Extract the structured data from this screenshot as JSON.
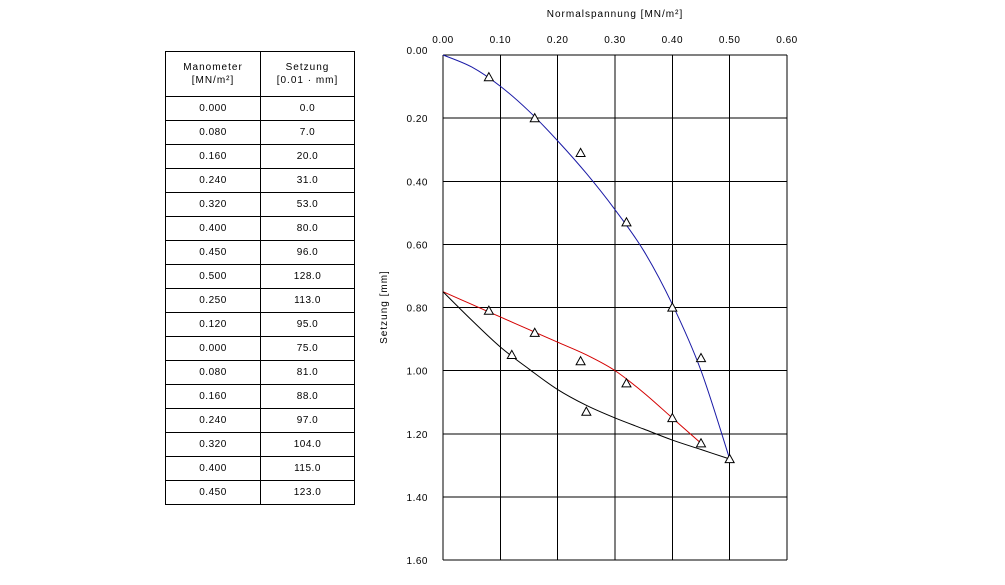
{
  "table": {
    "headers": [
      {
        "line1": "Manometer",
        "line2": "[MN/m²]"
      },
      {
        "line1": "Setzung",
        "line2": "[0.01 · mm]"
      }
    ],
    "rows": [
      [
        "0.000",
        "0.0"
      ],
      [
        "0.080",
        "7.0"
      ],
      [
        "0.160",
        "20.0"
      ],
      [
        "0.240",
        "31.0"
      ],
      [
        "0.320",
        "53.0"
      ],
      [
        "0.400",
        "80.0"
      ],
      [
        "0.450",
        "96.0"
      ],
      [
        "0.500",
        "128.0"
      ],
      [
        "0.250",
        "113.0"
      ],
      [
        "0.120",
        "95.0"
      ],
      [
        "0.000",
        "75.0"
      ],
      [
        "0.080",
        "81.0"
      ],
      [
        "0.160",
        "88.0"
      ],
      [
        "0.240",
        "97.0"
      ],
      [
        "0.320",
        "104.0"
      ],
      [
        "0.400",
        "115.0"
      ],
      [
        "0.450",
        "123.0"
      ]
    ]
  },
  "chart_data": {
    "type": "scatter",
    "title": "",
    "xlabel": "Normalspannung [MN/m²]",
    "ylabel": "Setzung [mm]",
    "xlim": [
      0,
      0.6
    ],
    "ylim": [
      0,
      1.6
    ],
    "y_inverted": true,
    "x_axis_position": "top",
    "grid": true,
    "x_ticks": [
      "0.00",
      "0.10",
      "0.20",
      "0.30",
      "0.40",
      "0.50",
      "0.60"
    ],
    "y_ticks": [
      "0.00",
      "0.20",
      "0.40",
      "0.60",
      "0.80",
      "1.00",
      "1.20",
      "1.40",
      "1.60"
    ],
    "marker": "triangle-open",
    "points": {
      "x": [
        0.08,
        0.16,
        0.24,
        0.32,
        0.4,
        0.45,
        0.5,
        0.25,
        0.12,
        0.08,
        0.16,
        0.24,
        0.32,
        0.4,
        0.45
      ],
      "y": [
        0.07,
        0.2,
        0.31,
        0.53,
        0.8,
        0.96,
        1.28,
        1.13,
        0.95,
        0.81,
        0.88,
        0.97,
        1.04,
        1.15,
        1.23
      ]
    },
    "series": [
      {
        "color": "#1a1aa6",
        "x": [
          0,
          0.05,
          0.1,
          0.15,
          0.2,
          0.25,
          0.3,
          0.35,
          0.4,
          0.45,
          0.5
        ],
        "y": [
          0,
          0.038,
          0.099,
          0.178,
          0.272,
          0.375,
          0.49,
          0.62,
          0.79,
          1.0,
          1.28
        ]
      },
      {
        "color": "#d40000",
        "x": [
          0,
          0.05,
          0.1,
          0.15,
          0.2,
          0.25,
          0.3,
          0.35,
          0.4,
          0.45
        ],
        "y": [
          0.75,
          0.79,
          0.83,
          0.87,
          0.91,
          0.95,
          1.0,
          1.07,
          1.15,
          1.23
        ]
      },
      {
        "color": "#000000",
        "x": [
          0,
          0.05,
          0.1,
          0.15,
          0.2,
          0.25,
          0.3,
          0.35,
          0.4,
          0.45,
          0.5
        ],
        "y": [
          0.75,
          0.84,
          0.925,
          0.995,
          1.06,
          1.11,
          1.15,
          1.185,
          1.22,
          1.25,
          1.28
        ]
      }
    ]
  }
}
